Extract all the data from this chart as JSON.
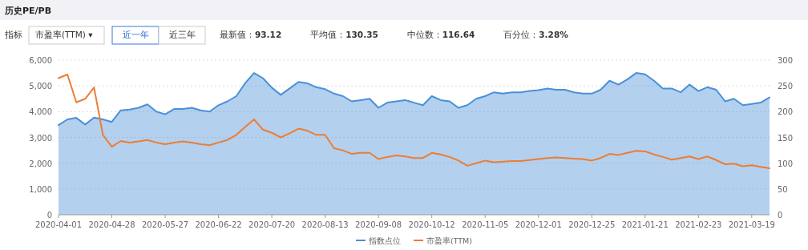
{
  "chart_data": {
    "type": "area",
    "title": "历史PE/PB",
    "annotations": [
      "指标",
      "市盈率(TTM) ▾",
      "近一年",
      "近三年",
      "最新值：93.12",
      "平均值：130.35",
      "中位数：116.64",
      "百分位：3.28%"
    ],
    "categories": [
      "2020-04-01",
      null,
      null,
      null,
      null,
      null,
      "2020-04-28",
      null,
      null,
      null,
      null,
      null,
      "2020-05-27",
      null,
      null,
      null,
      null,
      null,
      "2020-06-22",
      null,
      null,
      null,
      null,
      null,
      "2020-07-20",
      null,
      null,
      null,
      null,
      null,
      "2020-08-13",
      null,
      null,
      null,
      null,
      null,
      "2020-09-08",
      null,
      null,
      null,
      null,
      null,
      "2020-10-12",
      null,
      null,
      null,
      null,
      null,
      "2020-11-05",
      null,
      null,
      null,
      null,
      null,
      "2020-12-01",
      null,
      null,
      null,
      null,
      null,
      "2020-12-25",
      null,
      null,
      null,
      null,
      null,
      "2021-01-21",
      null,
      null,
      null,
      null,
      null,
      "2021-02-23",
      null,
      null,
      null,
      null,
      null,
      "2021-03-19",
      null,
      null
    ],
    "series": [
      {
        "name": "指数点位",
        "type": "area",
        "axis": "y",
        "color": "#4a90d9",
        "values": [
          3480,
          3700,
          3760,
          3500,
          3770,
          3700,
          3600,
          4050,
          4080,
          4150,
          4280,
          4000,
          3900,
          4100,
          4100,
          4150,
          4050,
          4000,
          4250,
          4400,
          4600,
          5100,
          5500,
          5300,
          4930,
          4650,
          4900,
          5150,
          5100,
          4950,
          4870,
          4700,
          4600,
          4400,
          4450,
          4500,
          4150,
          4350,
          4400,
          4450,
          4350,
          4250,
          4600,
          4450,
          4400,
          4150,
          4250,
          4500,
          4600,
          4750,
          4700,
          4750,
          4750,
          4800,
          4830,
          4900,
          4850,
          4850,
          4750,
          4700,
          4700,
          4850,
          5200,
          5050,
          5250,
          5500,
          5450,
          5200,
          4900,
          4900,
          4750,
          5050,
          4800,
          4950,
          4850,
          4400,
          4500,
          4250,
          4300,
          4350,
          4550
        ]
      },
      {
        "name": "市盈率(TTM)",
        "type": "line",
        "axis": "y2",
        "color": "#ed7d31",
        "values": [
          265,
          272,
          218,
          225,
          247,
          155,
          132,
          143,
          140,
          142,
          145,
          140,
          137,
          140,
          142,
          140,
          137,
          135,
          140,
          145,
          155,
          170,
          185,
          165,
          159,
          150,
          158,
          167,
          163,
          155,
          155,
          129,
          125,
          118,
          120,
          120,
          108,
          112,
          115,
          113,
          110,
          110,
          120,
          117,
          112,
          105,
          95,
          100,
          105,
          102,
          103,
          104,
          104,
          106,
          108,
          110,
          111,
          110,
          109,
          108,
          105,
          110,
          118,
          116,
          120,
          124,
          123,
          117,
          112,
          107,
          110,
          113,
          108,
          113,
          106,
          98,
          99,
          94,
          96,
          93,
          90
        ]
      }
    ],
    "ylim": [
      0,
      6000
    ],
    "yticks": [
      {
        "value": 0,
        "label": "0"
      },
      {
        "value": 1000,
        "label": "1,000"
      },
      {
        "value": 2000,
        "label": "2,000"
      },
      {
        "value": 3000,
        "label": "3,000"
      },
      {
        "value": 4000,
        "label": "4,000"
      },
      {
        "value": 5000,
        "label": "5,000"
      },
      {
        "value": 6000,
        "label": "6,000"
      }
    ],
    "y2lim": [
      0,
      300
    ],
    "y2ticks": [
      0,
      50,
      100,
      150,
      200,
      250,
      300
    ],
    "grid": "y",
    "legend": "bottom",
    "line_style": "solid",
    "marker": "none"
  }
}
